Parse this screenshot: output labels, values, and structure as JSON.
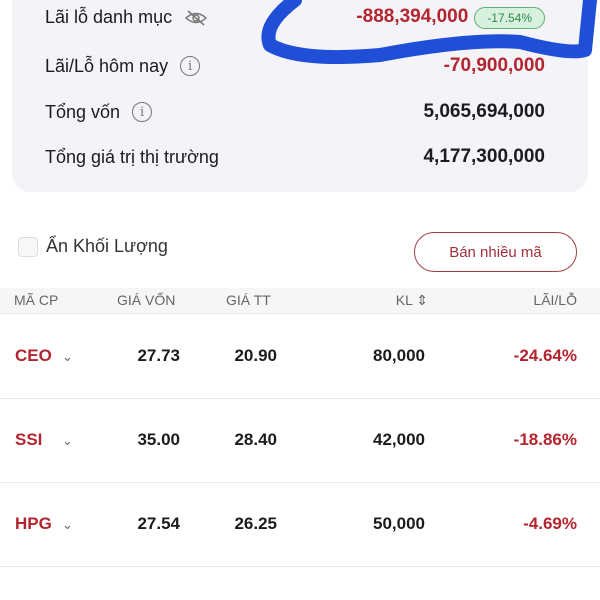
{
  "summary": {
    "portfolio_pl": {
      "label": "Lãi lỗ danh mục",
      "value": "-888,394,000",
      "percent": "-17.54%",
      "icon": "eye-slash-icon"
    },
    "today_pl": {
      "label": "Lãi/Lỗ hôm nay",
      "value": "-70,900,000",
      "icon": "info-icon"
    },
    "total_capital": {
      "label": "Tổng vốn",
      "value": "5,065,694,000",
      "icon": "info-icon"
    },
    "market_value": {
      "label": "Tổng giá trị thị trường",
      "value": "4,177,300,000"
    }
  },
  "controls": {
    "hide_volume_label": "Ẩn Khối Lượng",
    "hide_volume_checked": false,
    "sell_multiple_label": "Bán nhiều mã"
  },
  "table": {
    "headers": [
      "MÃ CP",
      "GIÁ VỐN",
      "GIÁ TT",
      "KL ⇕",
      "LÃI/LỖ"
    ],
    "rows": [
      {
        "ticker": "CEO",
        "cost": "27.73",
        "price": "20.90",
        "qty": "80,000",
        "pl": "-24.64%"
      },
      {
        "ticker": "SSI",
        "cost": "35.00",
        "price": "28.40",
        "qty": "42,000",
        "pl": "-18.86%"
      },
      {
        "ticker": "HPG",
        "cost": "27.54",
        "price": "26.25",
        "qty": "50,000",
        "pl": "-4.69%"
      }
    ]
  },
  "colors": {
    "negative": "#b3252f",
    "marker": "#1f4fd6",
    "badge": "#2f8a4a"
  }
}
